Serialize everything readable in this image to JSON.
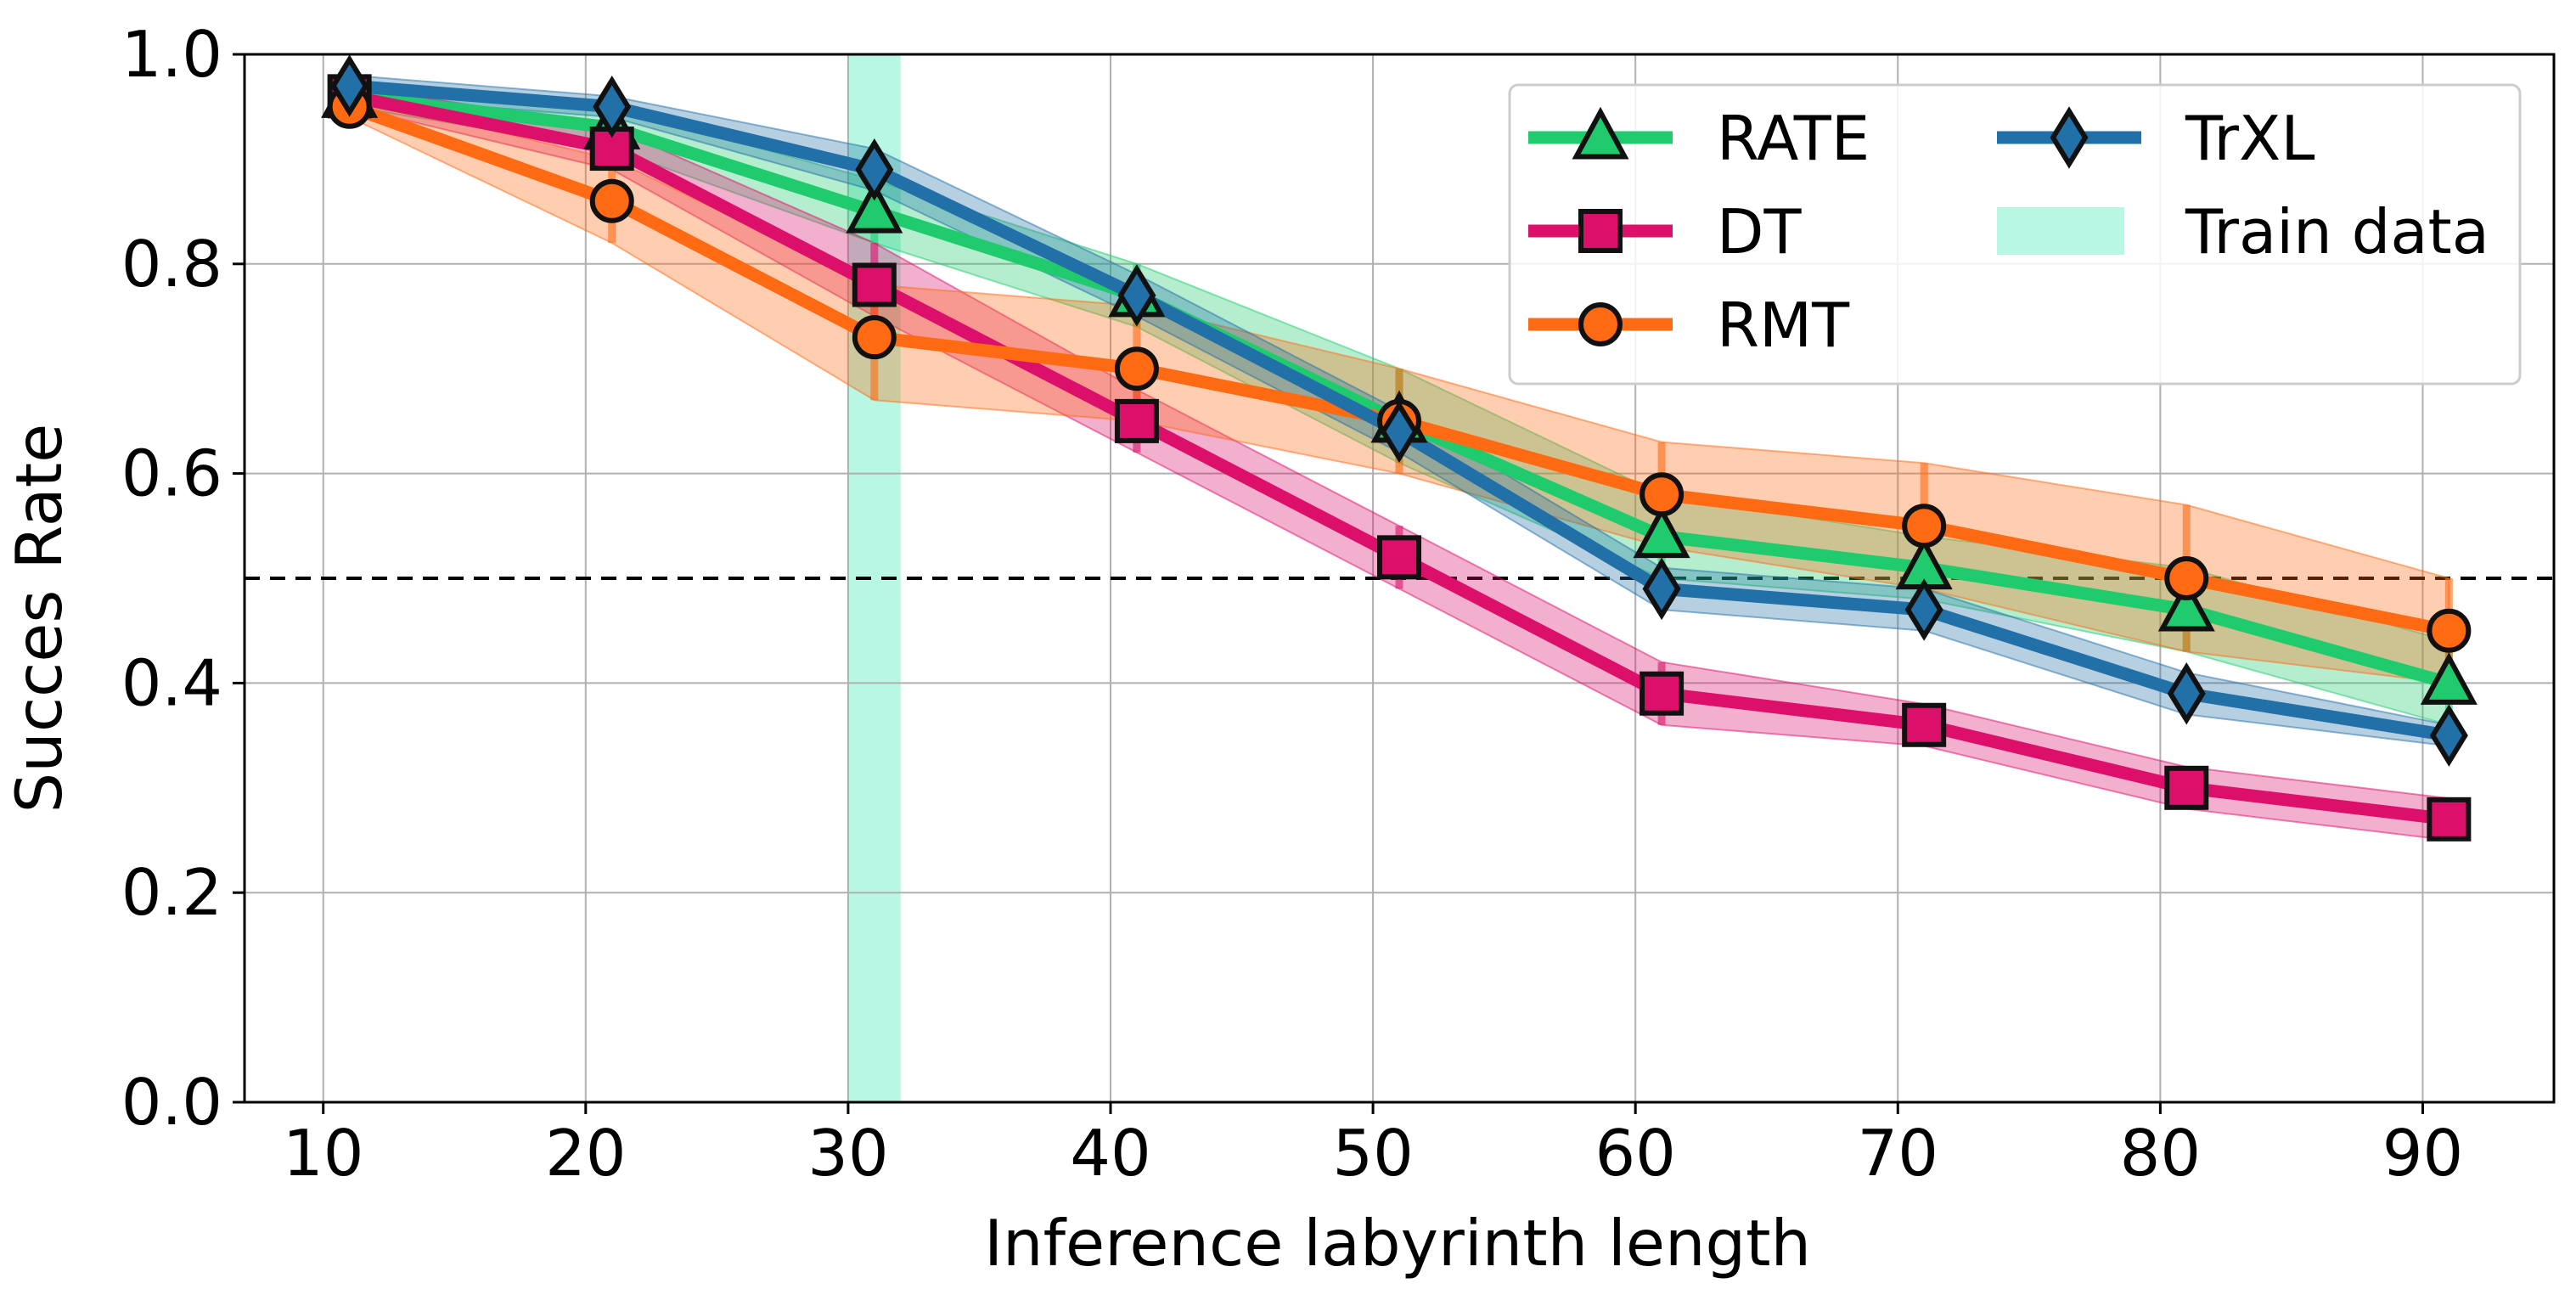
{
  "chart_data": {
    "type": "line",
    "title": "",
    "xlabel": "Inference labyrinth length",
    "ylabel": "Succes Rate",
    "xlim": [
      7,
      95
    ],
    "ylim": [
      0.0,
      1.0
    ],
    "xticks": [
      10,
      20,
      30,
      40,
      50,
      60,
      70,
      80,
      90
    ],
    "xtick_labels": [
      "10",
      "20",
      "30",
      "40",
      "50",
      "60",
      "70",
      "80",
      "90"
    ],
    "yticks": [
      0.0,
      0.2,
      0.4,
      0.6,
      0.8,
      1.0
    ],
    "ytick_labels": [
      "0.0",
      "0.2",
      "0.4",
      "0.6",
      "0.8",
      "1.0"
    ],
    "grid": true,
    "legend_position": "top-right",
    "reference_line": {
      "y": 0.5,
      "style": "dashed",
      "color": "#000000"
    },
    "train_region": {
      "label": "Train data",
      "x_start": 30,
      "x_end": 32,
      "color": "#b7f7e3"
    },
    "x": [
      11,
      21,
      31,
      41,
      51,
      61,
      71,
      81,
      91
    ],
    "series": [
      {
        "name": "RATE",
        "color": "#1fcb6c",
        "marker": "triangle",
        "values": [
          0.96,
          0.93,
          0.85,
          0.77,
          0.65,
          0.54,
          0.51,
          0.47,
          0.4
        ],
        "lower": [
          0.95,
          0.91,
          0.82,
          0.74,
          0.61,
          0.5,
          0.48,
          0.43,
          0.36
        ],
        "upper": [
          0.97,
          0.95,
          0.88,
          0.8,
          0.7,
          0.58,
          0.54,
          0.51,
          0.44
        ]
      },
      {
        "name": "DT",
        "color": "#dc0f6b",
        "marker": "square",
        "values": [
          0.96,
          0.91,
          0.78,
          0.65,
          0.52,
          0.39,
          0.36,
          0.3,
          0.27
        ],
        "lower": [
          0.95,
          0.89,
          0.75,
          0.62,
          0.49,
          0.36,
          0.34,
          0.28,
          0.25
        ],
        "upper": [
          0.97,
          0.93,
          0.82,
          0.68,
          0.55,
          0.42,
          0.38,
          0.32,
          0.29
        ]
      },
      {
        "name": "RMT",
        "color": "#ff6a13",
        "marker": "circle",
        "values": [
          0.95,
          0.86,
          0.73,
          0.7,
          0.65,
          0.58,
          0.55,
          0.5,
          0.45
        ],
        "lower": [
          0.94,
          0.82,
          0.67,
          0.65,
          0.6,
          0.53,
          0.49,
          0.43,
          0.4
        ],
        "upper": [
          0.96,
          0.9,
          0.78,
          0.76,
          0.7,
          0.63,
          0.61,
          0.57,
          0.5
        ]
      },
      {
        "name": "TrXL",
        "color": "#2270a8",
        "marker": "diamond",
        "values": [
          0.97,
          0.95,
          0.89,
          0.77,
          0.64,
          0.49,
          0.47,
          0.39,
          0.35
        ],
        "lower": [
          0.96,
          0.94,
          0.87,
          0.75,
          0.62,
          0.47,
          0.45,
          0.37,
          0.34
        ],
        "upper": [
          0.98,
          0.96,
          0.91,
          0.79,
          0.66,
          0.51,
          0.49,
          0.41,
          0.36
        ]
      }
    ]
  }
}
